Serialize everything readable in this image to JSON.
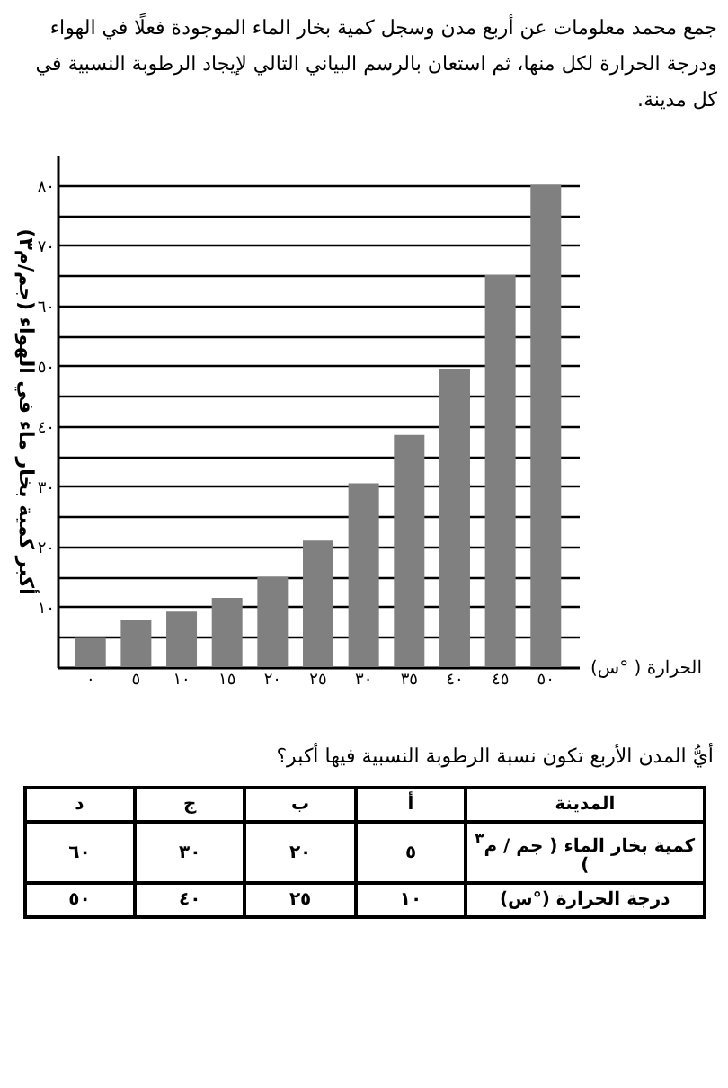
{
  "chart_data": {
    "type": "bar",
    "title": "جمع محمد معلومات عن أربع مدن وسجل كمية بخار الماء الموجودة فعلًا في الهواء ودرجة الحرارة لكل منها، ثم استعان بالرسم البياني التالي لإيجاد الرطوبة النسبية في كل مدينة.",
    "xlabel": "الحرارة ( °س)",
    "ylabel": "أكبر كمية بخار ماء في الهواء (جم/م٣)",
    "categories": [
      "٠",
      "٥",
      "١٠",
      "١٥",
      "٢٠",
      "٢٥",
      "٣٠",
      "٣٥",
      "٤٠",
      "٤٥",
      "٥٠"
    ],
    "values": [
      5,
      7.8,
      9.2,
      11.5,
      15,
      21,
      30.5,
      38.5,
      49.5,
      65,
      80
    ],
    "color": "#808080",
    "ylim": [
      0,
      85
    ],
    "yticks": [
      {
        "value": 5,
        "label": null
      },
      {
        "value": 10,
        "label": "١٠"
      },
      {
        "value": 15,
        "label": null
      },
      {
        "value": 20,
        "label": "٢٠"
      },
      {
        "value": 25,
        "label": null
      },
      {
        "value": 30,
        "label": "٣٠"
      },
      {
        "value": 35,
        "label": null
      },
      {
        "value": 40,
        "label": "٤٠"
      },
      {
        "value": 45,
        "label": null
      },
      {
        "value": 50,
        "label": "٥٠"
      },
      {
        "value": 55,
        "label": null
      },
      {
        "value": 60,
        "label": "٦٠"
      },
      {
        "value": 65,
        "label": null
      },
      {
        "value": 70,
        "label": "٧٠"
      },
      {
        "value": 75,
        "label": null
      },
      {
        "value": 80,
        "label": "٨٠"
      }
    ],
    "grid": "y",
    "annotations": [
      "أيُّ المدن الأربع تكون نسبة الرطوبة النسبية فيها أكبر؟",
      "المدينة",
      "أ",
      "ب",
      "ج",
      "د",
      "كمية بخار الماء ( جم / م$^{٣}$ )",
      "٥",
      "٢٠",
      "٣٠",
      "٦٠",
      "درجة الحرارة (°س)",
      "١٠",
      "٢٥",
      "٤٠",
      "٥٠"
    ]
  }
}
